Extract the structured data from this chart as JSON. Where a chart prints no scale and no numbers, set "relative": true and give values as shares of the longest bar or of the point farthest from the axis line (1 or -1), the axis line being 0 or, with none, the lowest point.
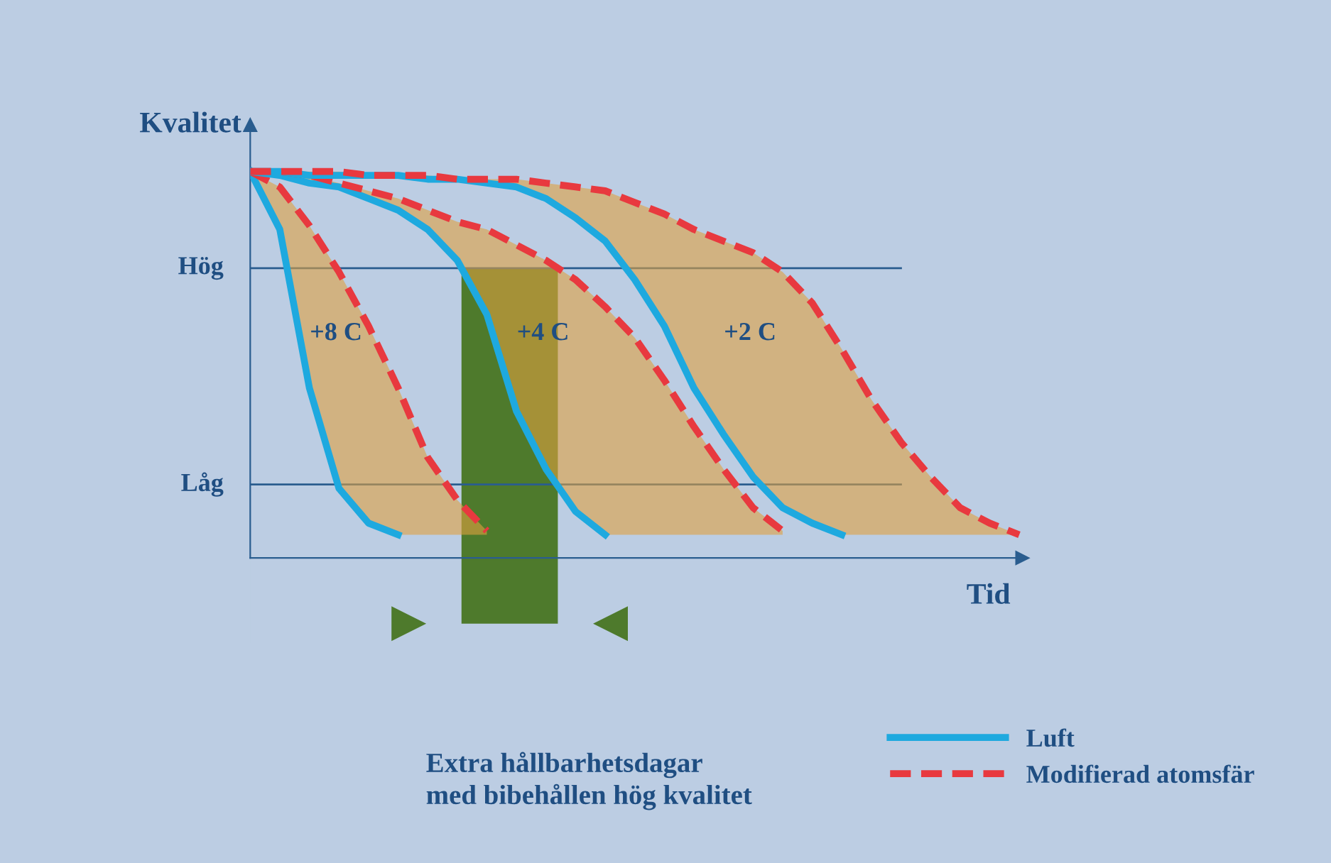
{
  "chart_data": {
    "type": "line",
    "relative": true,
    "ylabel": "Kvalitet",
    "xlabel": "Tid",
    "legend": "bottom right",
    "grid": false,
    "marker": "none",
    "categories": [
      null,
      null,
      null,
      null,
      null,
      null,
      null,
      null,
      null,
      null,
      null,
      null,
      null,
      null,
      null,
      null,
      null,
      null,
      null,
      null,
      null,
      null,
      null,
      null,
      null,
      null,
      null
    ],
    "series": [
      {
        "name": "Luft",
        "color": "#1ea9df",
        "line_style": "solid",
        "values": [
          1.0,
          0.85,
          0.44,
          0.18,
          0.09,
          0.06,
          null,
          null,
          null,
          null,
          null,
          null,
          null,
          null,
          null,
          null,
          null,
          null,
          null,
          null,
          null,
          null,
          null,
          null,
          null,
          null,
          null
        ]
      },
      {
        "name": "Modifierad atomsfär",
        "color": "#e8393f",
        "line_style": "dashed",
        "values": [
          1.0,
          0.96,
          0.86,
          0.74,
          0.6,
          0.44,
          0.26,
          0.15,
          0.07,
          null,
          null,
          null,
          null,
          null,
          null,
          null,
          null,
          null,
          null,
          null,
          null,
          null,
          null,
          null,
          null,
          null,
          null
        ],
        "lower": [
          1.0,
          0.85,
          0.44,
          0.18,
          0.09,
          0.06,
          0.06,
          0.06,
          0.06,
          null,
          null,
          null,
          null,
          null,
          null,
          null,
          null,
          null,
          null,
          null,
          null,
          null,
          null,
          null,
          null,
          null,
          null
        ],
        "upper": [
          1.0,
          0.96,
          0.86,
          0.74,
          0.6,
          0.44,
          0.26,
          0.15,
          0.07,
          null,
          null,
          null,
          null,
          null,
          null,
          null,
          null,
          null,
          null,
          null,
          null,
          null,
          null,
          null,
          null,
          null,
          null
        ]
      },
      {
        "color": "#1ea9df",
        "line_style": "solid",
        "values": [
          1.0,
          0.99,
          0.97,
          0.96,
          0.93,
          0.9,
          0.85,
          0.77,
          0.63,
          0.38,
          0.23,
          0.12,
          0.06,
          null,
          null,
          null,
          null,
          null,
          null,
          null,
          null,
          null,
          null,
          null,
          null,
          null,
          null
        ]
      },
      {
        "color": "#e8393f",
        "line_style": "dashed",
        "values": [
          1.0,
          1.0,
          0.99,
          0.97,
          0.95,
          0.93,
          0.9,
          0.87,
          0.85,
          0.81,
          0.77,
          0.72,
          0.65,
          0.57,
          0.46,
          0.34,
          0.23,
          0.13,
          0.07,
          null,
          null,
          null,
          null,
          null,
          null,
          null,
          null
        ],
        "lower": [
          1.0,
          0.99,
          0.97,
          0.96,
          0.93,
          0.9,
          0.85,
          0.77,
          0.63,
          0.38,
          0.23,
          0.12,
          0.06,
          0.06,
          0.06,
          0.06,
          0.06,
          0.06,
          0.06,
          null,
          null,
          null,
          null,
          null,
          null,
          null,
          null
        ],
        "upper": [
          1.0,
          1.0,
          0.99,
          0.97,
          0.95,
          0.93,
          0.9,
          0.87,
          0.85,
          0.81,
          0.77,
          0.72,
          0.65,
          0.57,
          0.46,
          0.34,
          0.23,
          0.13,
          0.07,
          null,
          null,
          null,
          null,
          null,
          null,
          null,
          null
        ]
      },
      {
        "color": "#1ea9df",
        "line_style": "solid",
        "values": [
          1.0,
          1.0,
          0.99,
          0.99,
          0.99,
          0.99,
          0.98,
          0.98,
          0.97,
          0.96,
          0.93,
          0.88,
          0.82,
          0.72,
          0.6,
          0.44,
          0.32,
          0.21,
          0.13,
          0.09,
          0.06,
          null,
          null,
          null,
          null,
          null,
          null
        ]
      },
      {
        "color": "#e8393f",
        "line_style": "dashed",
        "values": [
          1.0,
          1.0,
          1.0,
          1.0,
          0.99,
          0.99,
          0.99,
          0.98,
          0.98,
          0.98,
          0.97,
          0.96,
          0.95,
          0.92,
          0.89,
          0.85,
          0.82,
          0.79,
          0.74,
          0.66,
          0.54,
          0.41,
          0.3,
          0.21,
          0.13,
          0.09,
          0.06
        ],
        "lower": [
          1.0,
          1.0,
          0.99,
          0.99,
          0.99,
          0.99,
          0.98,
          0.98,
          0.97,
          0.96,
          0.93,
          0.88,
          0.82,
          0.72,
          0.6,
          0.44,
          0.32,
          0.21,
          0.13,
          0.09,
          0.06,
          0.06,
          0.06,
          0.06,
          0.06,
          0.06,
          0.06
        ],
        "upper": [
          1.0,
          1.0,
          1.0,
          1.0,
          0.99,
          0.99,
          0.99,
          0.98,
          0.98,
          0.98,
          0.97,
          0.96,
          0.95,
          0.92,
          0.89,
          0.85,
          0.82,
          0.79,
          0.74,
          0.66,
          0.54,
          0.41,
          0.3,
          0.21,
          0.13,
          0.09,
          0.06
        ]
      }
    ],
    "ref_lines": [
      {
        "axis": "y",
        "value": 0.75,
        "label": "Hög",
        "color": "#2a5d8f"
      },
      {
        "axis": "y",
        "value": 0.19,
        "label": "Låg",
        "color": "#2a5d8f"
      }
    ],
    "annotations": [
      "+8 C",
      "+4 C",
      "+2 C",
      "Extra hållbarhetsdagar\nmed bibehållen hög kvalitet"
    ]
  }
}
